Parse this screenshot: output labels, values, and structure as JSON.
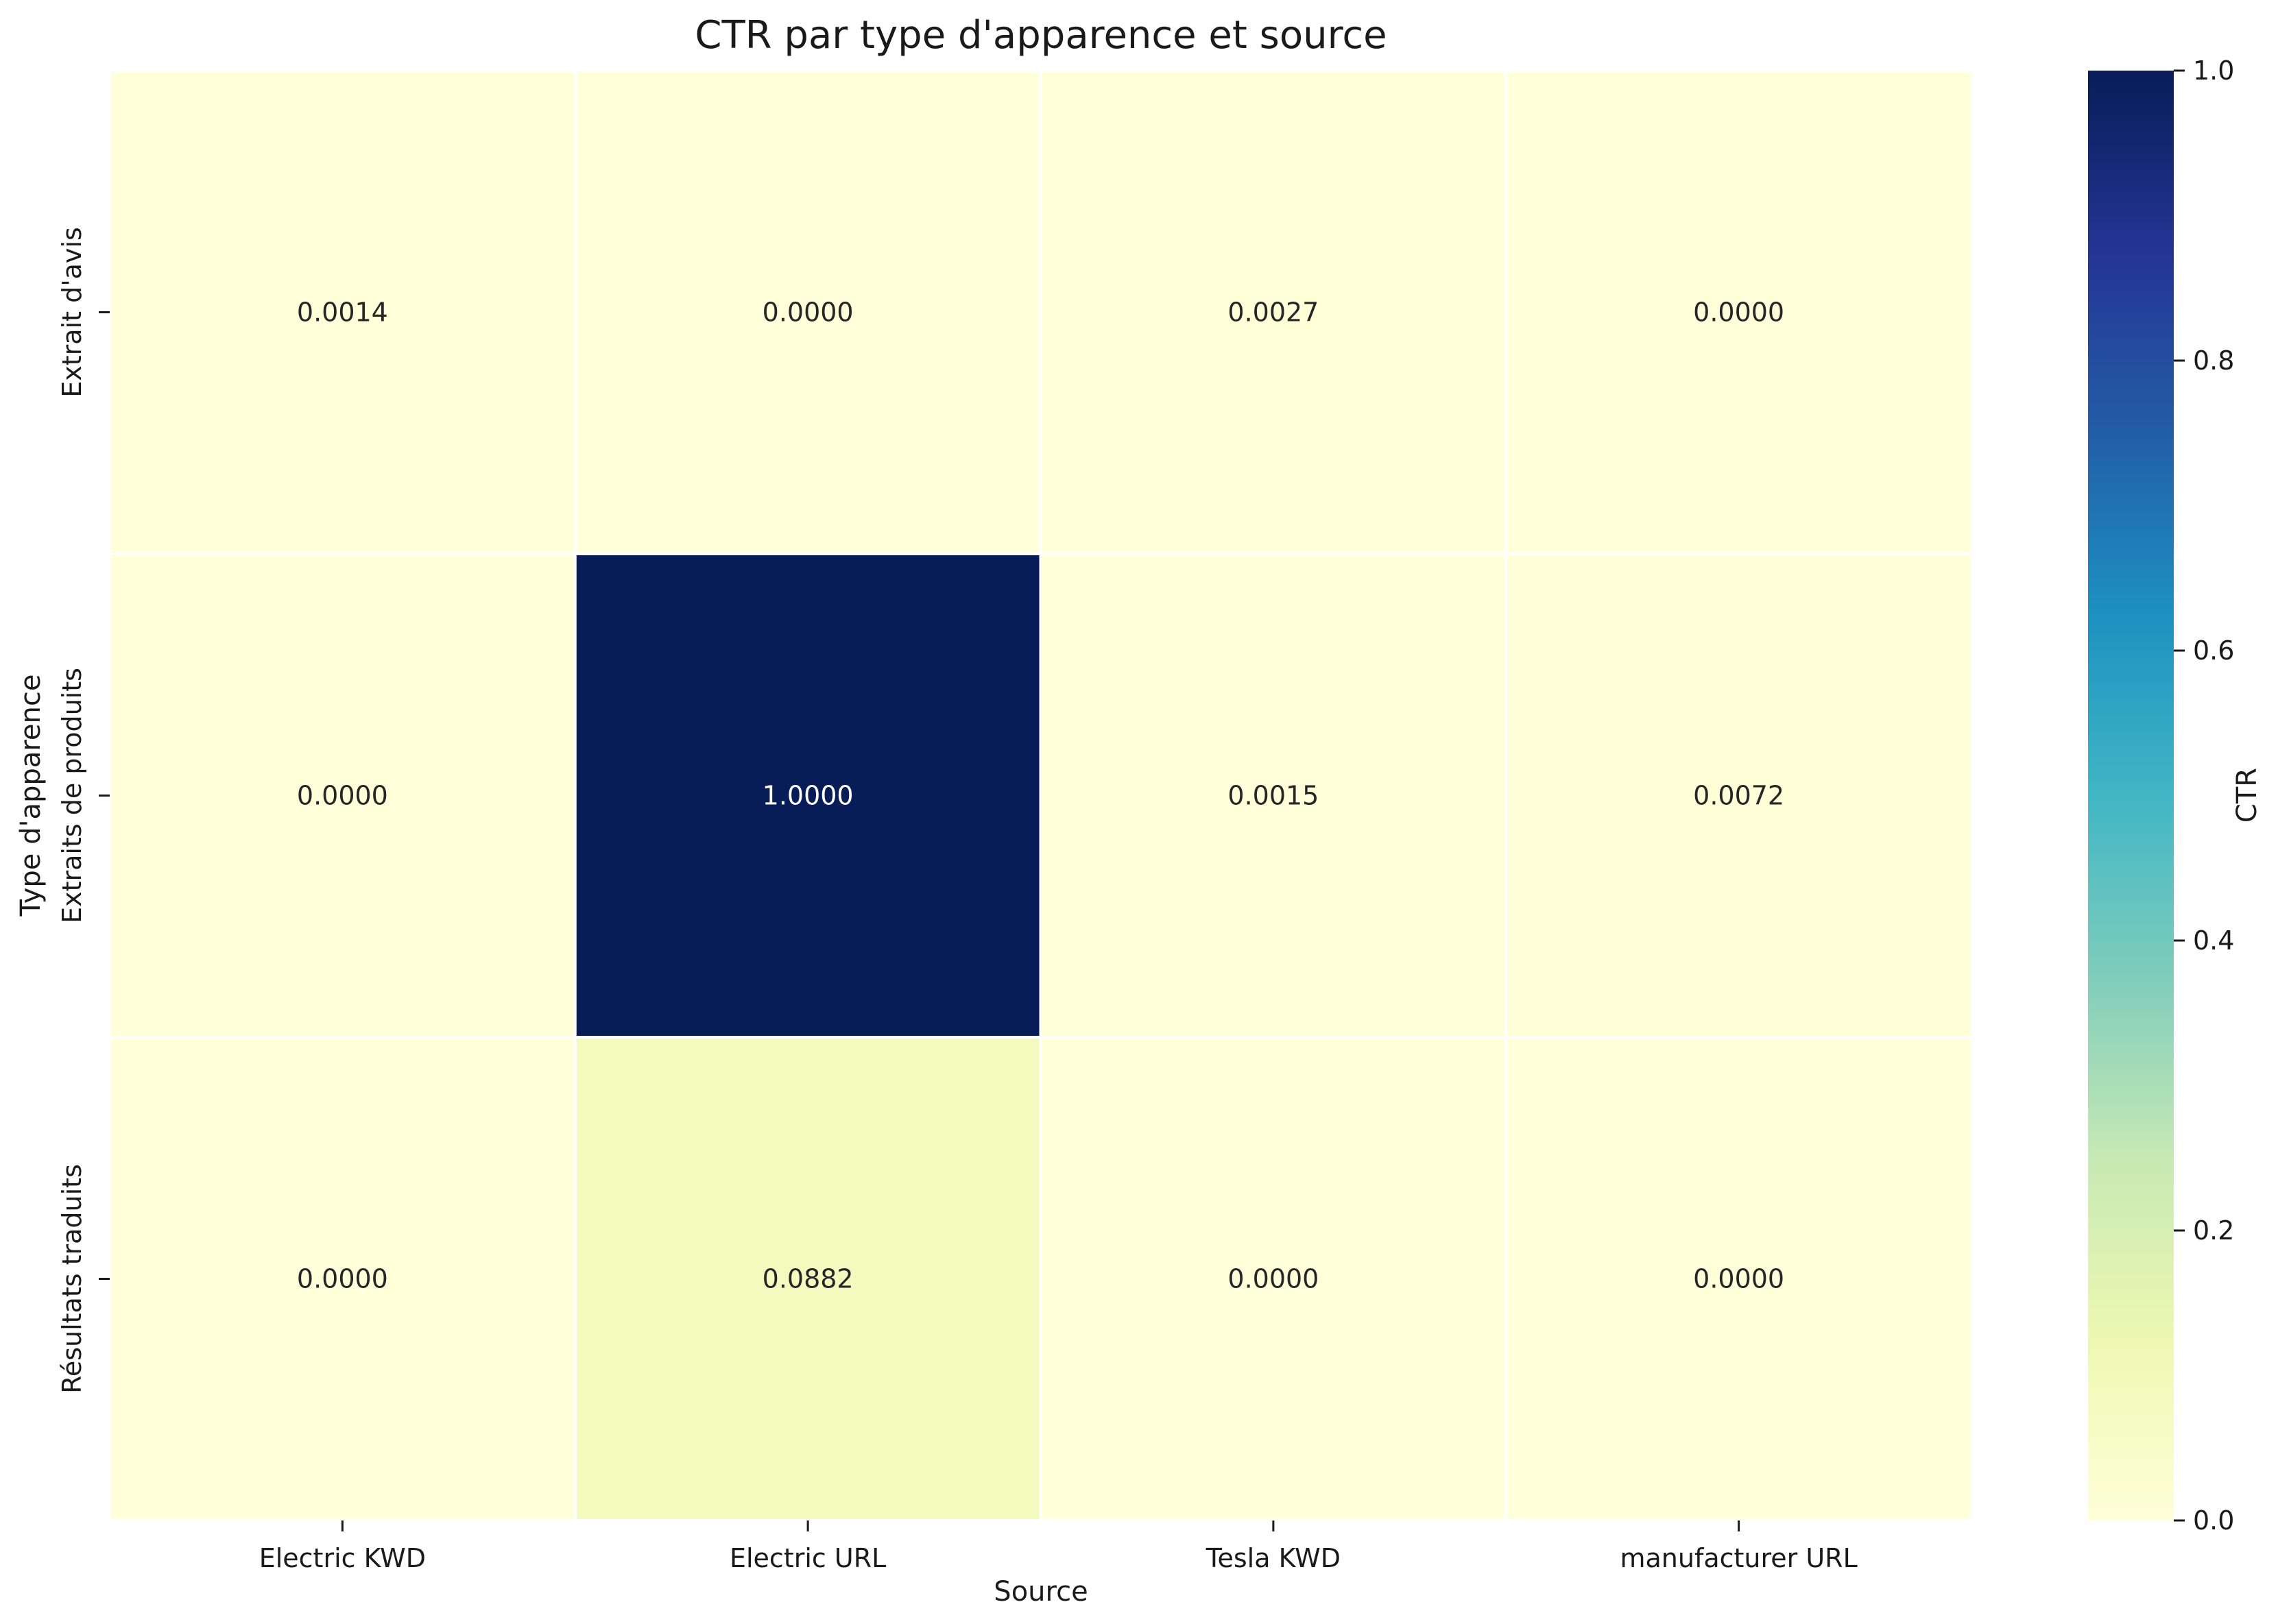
{
  "chart_data": {
    "type": "heatmap",
    "title": "CTR par type d'apparence et source",
    "xlabel": "Source",
    "ylabel": "Type d'apparence",
    "x_categories": [
      "Electric KWD",
      "Electric URL",
      "Tesla KWD",
      "manufacturer URL"
    ],
    "y_categories": [
      "Extrait d'avis",
      "Extraits de produits",
      "Résultats traduits"
    ],
    "values": [
      [
        0.0014,
        0.0,
        0.0027,
        0.0
      ],
      [
        0.0,
        1.0,
        0.0015,
        0.0072
      ],
      [
        0.0,
        0.0882,
        0.0,
        0.0
      ]
    ],
    "cell_labels": [
      [
        "0.0014",
        "0.0000",
        "0.0027",
        "0.0000"
      ],
      [
        "0.0000",
        "1.0000",
        "0.0015",
        "0.0072"
      ],
      [
        "0.0000",
        "0.0882",
        "0.0000",
        "0.0000"
      ]
    ],
    "colormap": "YlGnBu",
    "colorbar": {
      "label": "CTR",
      "range": [
        0,
        1
      ],
      "ticks": [
        "0.0",
        "0.2",
        "0.4",
        "0.6",
        "0.8",
        "1.0"
      ]
    }
  }
}
